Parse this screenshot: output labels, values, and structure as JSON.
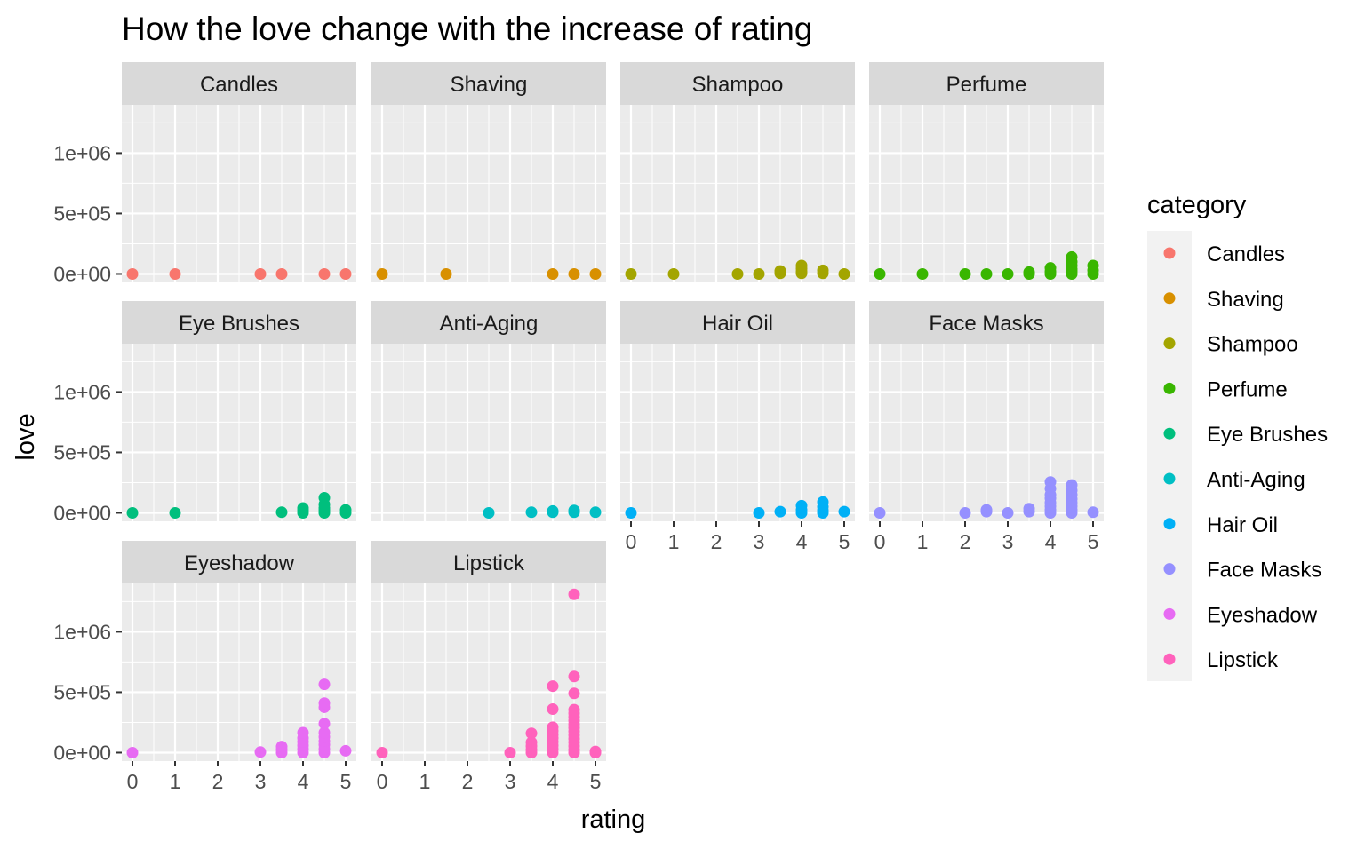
{
  "chart_data": {
    "type": "scatter",
    "title": "How the love change with the increase of rating",
    "xlabel": "rating",
    "ylabel": "love",
    "x_ticks": [
      0,
      1,
      2,
      3,
      4,
      5
    ],
    "x_tick_labels": [
      "0",
      "1",
      "2",
      "3",
      "4",
      "5"
    ],
    "y_ticks": [
      0,
      500000,
      1000000
    ],
    "y_tick_labels": [
      "0e+00",
      "5e+05",
      "1e+06"
    ],
    "xlim": [
      -0.25,
      5.25
    ],
    "ylim": [
      -70000,
      1400000
    ],
    "grid": true,
    "facet_by": "category",
    "legend": {
      "title": "category",
      "position": "right",
      "entries": [
        "Candles",
        "Shaving",
        "Shampoo",
        "Perfume",
        "Eye Brushes",
        "Anti-Aging",
        "Hair Oil",
        "Face Masks",
        "Eyeshadow",
        "Lipstick"
      ]
    },
    "series": [
      {
        "name": "Candles",
        "color": "#F8766D",
        "points": [
          [
            0,
            0
          ],
          [
            1,
            0
          ],
          [
            3,
            0
          ],
          [
            3.5,
            0
          ],
          [
            4.5,
            0
          ],
          [
            5,
            0
          ]
        ]
      },
      {
        "name": "Shaving",
        "color": "#D89000",
        "points": [
          [
            0,
            0
          ],
          [
            1.5,
            0
          ],
          [
            4,
            0
          ],
          [
            4.5,
            0
          ],
          [
            5,
            0
          ]
        ]
      },
      {
        "name": "Shampoo",
        "color": "#A3A500",
        "points": [
          [
            0,
            0
          ],
          [
            1,
            0
          ],
          [
            2.5,
            0
          ],
          [
            3,
            0
          ],
          [
            3.5,
            5000
          ],
          [
            3.5,
            25000
          ],
          [
            4,
            5000
          ],
          [
            4,
            20000
          ],
          [
            4,
            45000
          ],
          [
            4,
            70000
          ],
          [
            4.5,
            5000
          ],
          [
            4.5,
            30000
          ],
          [
            5,
            0
          ]
        ]
      },
      {
        "name": "Perfume",
        "color": "#39B600",
        "points": [
          [
            0,
            0
          ],
          [
            1,
            0
          ],
          [
            2,
            0
          ],
          [
            2.5,
            0
          ],
          [
            3,
            0
          ],
          [
            3.5,
            0
          ],
          [
            3.5,
            15000
          ],
          [
            4,
            0
          ],
          [
            4,
            20000
          ],
          [
            4,
            50000
          ],
          [
            4.5,
            0
          ],
          [
            4.5,
            20000
          ],
          [
            4.5,
            40000
          ],
          [
            4.5,
            70000
          ],
          [
            4.5,
            100000
          ],
          [
            4.5,
            140000
          ],
          [
            5,
            0
          ],
          [
            5,
            30000
          ],
          [
            5,
            70000
          ]
        ]
      },
      {
        "name": "Eye Brushes",
        "color": "#00BF7D",
        "points": [
          [
            0,
            0
          ],
          [
            1,
            0
          ],
          [
            3.5,
            5000
          ],
          [
            4,
            0
          ],
          [
            4,
            20000
          ],
          [
            4,
            40000
          ],
          [
            4.5,
            0
          ],
          [
            4.5,
            20000
          ],
          [
            4.5,
            40000
          ],
          [
            4.5,
            70000
          ],
          [
            4.5,
            125000
          ],
          [
            5,
            0
          ],
          [
            5,
            25000
          ]
        ]
      },
      {
        "name": "Anti-Aging",
        "color": "#00BFC4",
        "points": [
          [
            2.5,
            0
          ],
          [
            3.5,
            5000
          ],
          [
            4,
            5000
          ],
          [
            4,
            15000
          ],
          [
            4.5,
            5000
          ],
          [
            4.5,
            20000
          ],
          [
            5,
            5000
          ]
        ]
      },
      {
        "name": "Hair Oil",
        "color": "#00B0F6",
        "points": [
          [
            0,
            0
          ],
          [
            3,
            0
          ],
          [
            3.5,
            10000
          ],
          [
            4,
            0
          ],
          [
            4,
            25000
          ],
          [
            4,
            60000
          ],
          [
            4.5,
            0
          ],
          [
            4.5,
            20000
          ],
          [
            4.5,
            50000
          ],
          [
            4.5,
            90000
          ],
          [
            5,
            10000
          ]
        ]
      },
      {
        "name": "Face Masks",
        "color": "#9590FF",
        "points": [
          [
            0,
            0
          ],
          [
            2,
            0
          ],
          [
            2.5,
            10000
          ],
          [
            2.5,
            25000
          ],
          [
            3,
            0
          ],
          [
            3.5,
            10000
          ],
          [
            3.5,
            35000
          ],
          [
            4,
            0
          ],
          [
            4,
            25000
          ],
          [
            4,
            55000
          ],
          [
            4,
            85000
          ],
          [
            4,
            120000
          ],
          [
            4,
            150000
          ],
          [
            4,
            200000
          ],
          [
            4,
            255000
          ],
          [
            4.5,
            0
          ],
          [
            4.5,
            25000
          ],
          [
            4.5,
            55000
          ],
          [
            4.5,
            85000
          ],
          [
            4.5,
            115000
          ],
          [
            4.5,
            150000
          ],
          [
            4.5,
            185000
          ],
          [
            4.5,
            230000
          ],
          [
            5,
            5000
          ]
        ]
      },
      {
        "name": "Eyeshadow",
        "color": "#E76BF3",
        "points": [
          [
            0,
            0
          ],
          [
            3,
            5000
          ],
          [
            3.5,
            0
          ],
          [
            3.5,
            25000
          ],
          [
            3.5,
            50000
          ],
          [
            4,
            0
          ],
          [
            4,
            30000
          ],
          [
            4,
            60000
          ],
          [
            4,
            90000
          ],
          [
            4,
            120000
          ],
          [
            4,
            165000
          ],
          [
            4.5,
            0
          ],
          [
            4.5,
            30000
          ],
          [
            4.5,
            65000
          ],
          [
            4.5,
            95000
          ],
          [
            4.5,
            130000
          ],
          [
            4.5,
            165000
          ],
          [
            4.5,
            240000
          ],
          [
            4.5,
            375000
          ],
          [
            4.5,
            410000
          ],
          [
            4.5,
            565000
          ],
          [
            5,
            15000
          ]
        ]
      },
      {
        "name": "Lipstick",
        "color": "#FF62BC",
        "points": [
          [
            0,
            0
          ],
          [
            3,
            0
          ],
          [
            3.5,
            0
          ],
          [
            3.5,
            25000
          ],
          [
            3.5,
            55000
          ],
          [
            3.5,
            85000
          ],
          [
            3.5,
            160000
          ],
          [
            4,
            0
          ],
          [
            4,
            30000
          ],
          [
            4,
            60000
          ],
          [
            4,
            90000
          ],
          [
            4,
            120000
          ],
          [
            4,
            150000
          ],
          [
            4,
            180000
          ],
          [
            4,
            210000
          ],
          [
            4,
            360000
          ],
          [
            4,
            550000
          ],
          [
            4.5,
            0
          ],
          [
            4.5,
            25000
          ],
          [
            4.5,
            55000
          ],
          [
            4.5,
            85000
          ],
          [
            4.5,
            115000
          ],
          [
            4.5,
            145000
          ],
          [
            4.5,
            175000
          ],
          [
            4.5,
            205000
          ],
          [
            4.5,
            235000
          ],
          [
            4.5,
            265000
          ],
          [
            4.5,
            295000
          ],
          [
            4.5,
            325000
          ],
          [
            4.5,
            355000
          ],
          [
            4.5,
            490000
          ],
          [
            4.5,
            630000
          ],
          [
            4.5,
            1310000
          ],
          [
            5,
            0
          ],
          [
            5,
            10000
          ]
        ]
      }
    ]
  }
}
